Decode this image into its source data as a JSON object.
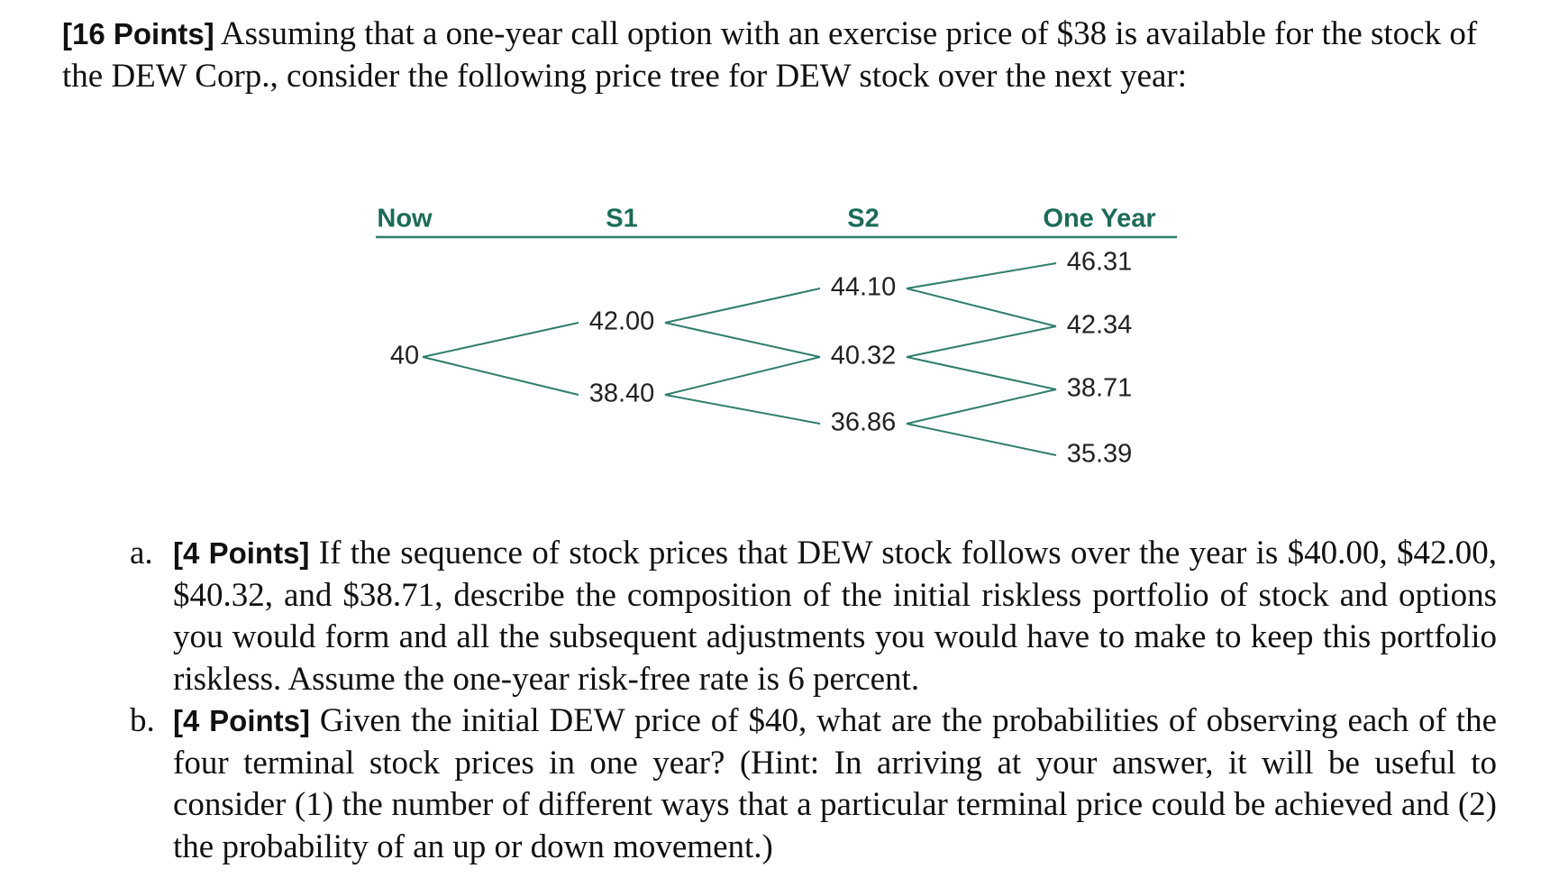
{
  "intro": {
    "points": "[16 Points]",
    "text": "Assuming that a one-year call option with an exercise price of $38 is available for the stock of the DEW Corp., consider the following price tree for DEW stock over the next year:"
  },
  "tree": {
    "headers": [
      "Now",
      "S1",
      "S2",
      "One Year"
    ],
    "columns": [
      [
        "40"
      ],
      [
        "42.00",
        "38.40"
      ],
      [
        "44.10",
        "40.32",
        "36.86"
      ],
      [
        "46.31",
        "42.34",
        "38.71",
        "35.39"
      ]
    ]
  },
  "questions": [
    {
      "marker": "a.",
      "points": "[4 Points]",
      "text": "If the sequence of stock prices that DEW stock follows over the year is $40.00, $42.00, $40.32, and $38.71, describe the composition of the initial riskless portfolio of stock and options you would form and all the subsequent adjustments you would have to make to keep this portfolio riskless. Assume the one-year risk-free rate is 6 percent."
    },
    {
      "marker": "b.",
      "points": "[4 Points]",
      "text": "Given the initial DEW price of $40, what are the probabilities of observing each of the four terminal stock prices in one year? (Hint: In arriving at your answer, it will be useful to consider (1) the number of different ways that a particular terminal price could be achieved and (2) the probability of an up or down movement.)"
    }
  ]
}
